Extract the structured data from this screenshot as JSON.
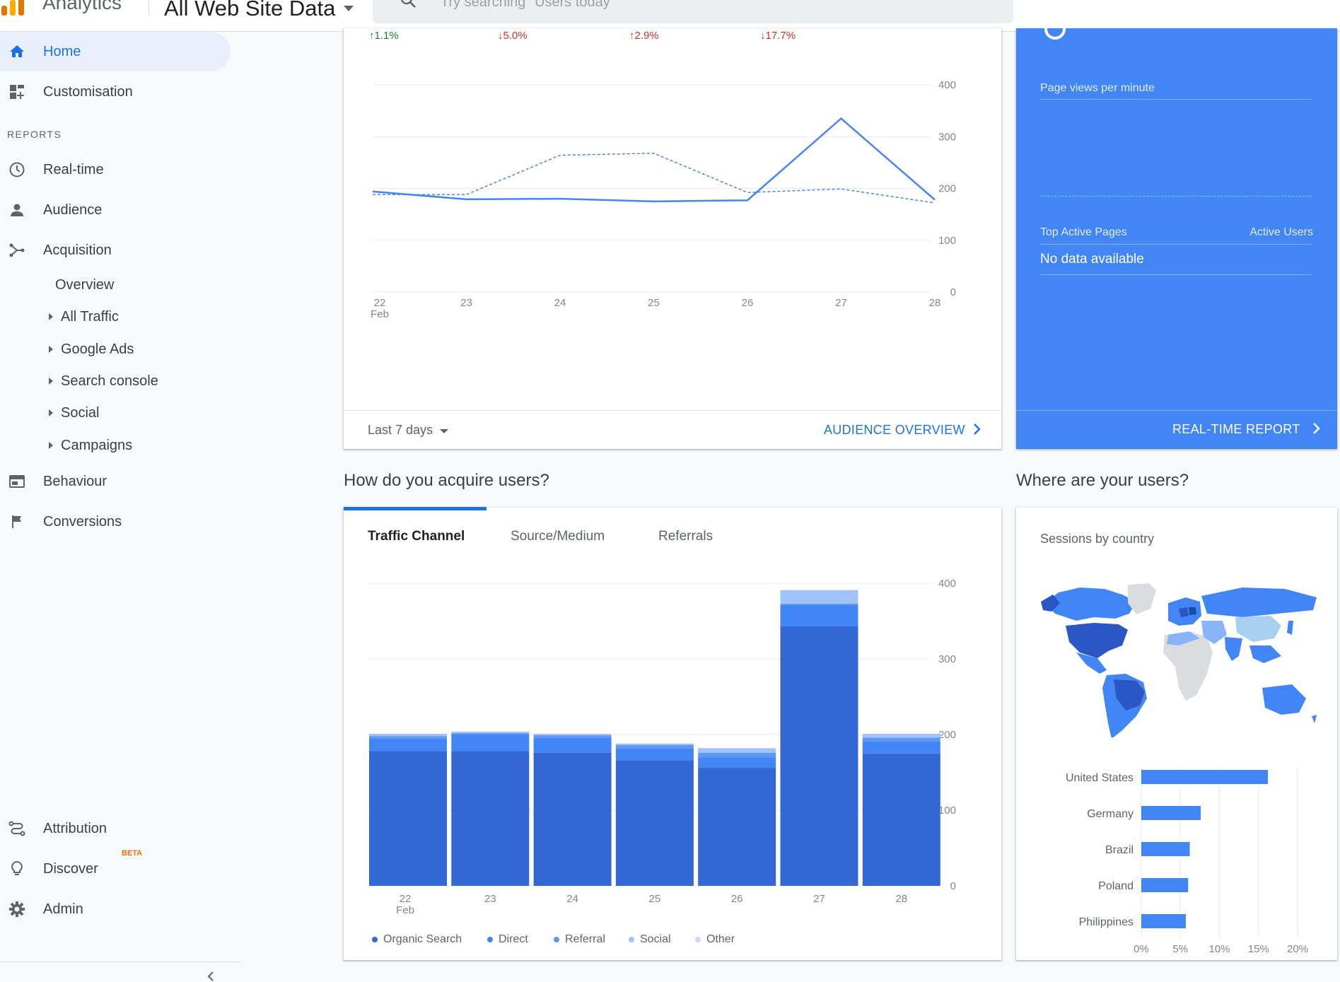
{
  "header": {
    "product": "Analytics",
    "property": "All Web Site Data",
    "search_placeholder": "Try searching \"Users today\""
  },
  "sidebar": {
    "reports_label": "REPORTS",
    "items": [
      {
        "label": "Home",
        "icon": "home-icon"
      },
      {
        "label": "Customisation",
        "icon": "dashboard-icon"
      },
      {
        "label": "Real-time",
        "icon": "clock-icon"
      },
      {
        "label": "Audience",
        "icon": "person-icon"
      },
      {
        "label": "Acquisition",
        "icon": "acquisition-icon"
      },
      {
        "label": "Behaviour",
        "icon": "behaviour-icon"
      },
      {
        "label": "Conversions",
        "icon": "flag-icon"
      },
      {
        "label": "Attribution",
        "icon": "attribution-icon"
      },
      {
        "label": "Discover",
        "icon": "lightbulb-icon"
      },
      {
        "label": "Admin",
        "icon": "gear-icon"
      }
    ],
    "acquisition_sub": [
      "Overview",
      "All Traffic",
      "Google Ads",
      "Search console",
      "Social",
      "Campaigns"
    ],
    "beta": "BETA"
  },
  "overview": {
    "deltas": [
      {
        "text": "1.1%",
        "dir": "up"
      },
      {
        "text": "5.0%",
        "dir": "down"
      },
      {
        "text": "2.9%",
        "dir": "up"
      },
      {
        "text": "17.7%",
        "dir": "down"
      }
    ],
    "range": "Last 7 days",
    "link": "AUDIENCE OVERVIEW"
  },
  "realtime": {
    "page_views": "Page views per minute",
    "top_pages": "Top Active Pages",
    "active_users": "Active Users",
    "no_data": "No data available",
    "link": "REAL-TIME REPORT"
  },
  "headings": {
    "acquire": "How do you acquire users?",
    "where": "Where are your users?"
  },
  "acq": {
    "tabs": [
      "Traffic Channel",
      "Source/Medium",
      "Referrals"
    ],
    "legend": [
      "Organic Search",
      "Direct",
      "Referral",
      "Social",
      "Other"
    ]
  },
  "geo": {
    "title": "Sessions by country"
  },
  "chart_data": [
    {
      "type": "line",
      "x": [
        "22 Feb",
        "23",
        "24",
        "25",
        "26",
        "27",
        "28"
      ],
      "series": [
        {
          "values": [
            194,
            179,
            180,
            175,
            177,
            335,
            178
          ],
          "style": "solid"
        },
        {
          "values": [
            188,
            188,
            264,
            268,
            192,
            199,
            172
          ],
          "style": "dashed"
        }
      ],
      "ylim": [
        0,
        400
      ],
      "yticks": [
        0,
        100,
        200,
        300,
        400
      ],
      "color": "#4285f4"
    },
    {
      "type": "bar",
      "stacked": true,
      "categories": [
        "22 Feb",
        "23",
        "24",
        "25",
        "26",
        "27",
        "28"
      ],
      "series": [
        {
          "name": "Organic Search",
          "values": [
            178,
            178,
            176,
            166,
            156,
            343,
            175
          ],
          "color": "#3367d6"
        },
        {
          "name": "Direct",
          "values": [
            17,
            22,
            20,
            16,
            14,
            28,
            16
          ],
          "color": "#4285f4"
        },
        {
          "name": "Referral",
          "values": [
            3,
            2,
            3,
            4,
            6,
            2,
            5
          ],
          "color": "#5e97f6"
        },
        {
          "name": "Social",
          "values": [
            3,
            2,
            2,
            2,
            6,
            18,
            5
          ],
          "color": "#a1c2fa"
        },
        {
          "name": "Other",
          "values": [
            0,
            0,
            0,
            0,
            0,
            0,
            0
          ],
          "color": "#c6dafc"
        }
      ],
      "ylim": [
        0,
        400
      ],
      "yticks": [
        0,
        100,
        200,
        300,
        400
      ]
    },
    {
      "type": "bar",
      "orientation": "horizontal",
      "categories": [
        "United States",
        "Germany",
        "Brazil",
        "Poland",
        "Philippines"
      ],
      "values": [
        16.2,
        7.6,
        6.2,
        6.0,
        5.7
      ],
      "xticks": [
        "0%",
        "5%",
        "10%",
        "15%",
        "20%"
      ],
      "xlim": [
        0,
        20
      ],
      "color": "#4285f4"
    }
  ]
}
